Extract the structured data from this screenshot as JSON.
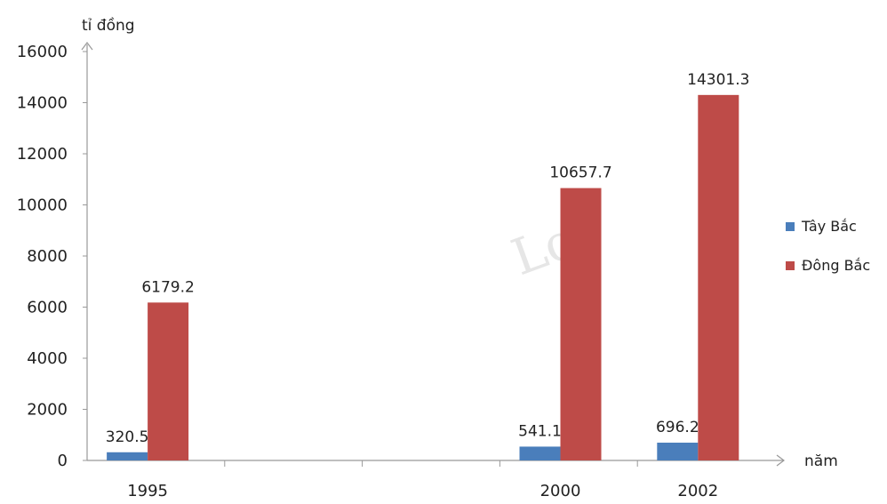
{
  "chart_data": {
    "type": "bar",
    "categories": [
      "1995",
      "",
      "",
      "2000",
      "2002"
    ],
    "series": [
      {
        "name": "Tây Bắc",
        "color": "#4a7ebb",
        "values": [
          320.5,
          null,
          null,
          541.1,
          696.2
        ],
        "labels": [
          "320.5",
          "",
          "",
          "541.1",
          "696.2"
        ]
      },
      {
        "name": "Đông Bắc",
        "color": "#be4b48",
        "values": [
          6179.2,
          null,
          null,
          10657.7,
          14301.3
        ],
        "labels": [
          "6179.2",
          "",
          "",
          "10657.7",
          "14301.3"
        ]
      }
    ],
    "ylim": [
      0,
      16000
    ],
    "yticks": [
      0,
      2000,
      4000,
      6000,
      8000,
      10000,
      12000,
      14000,
      16000
    ],
    "ylabel": "tỉ đồng",
    "xlabel": "năm",
    "legend_position": "right",
    "grid": false
  },
  "watermark": "Lo"
}
